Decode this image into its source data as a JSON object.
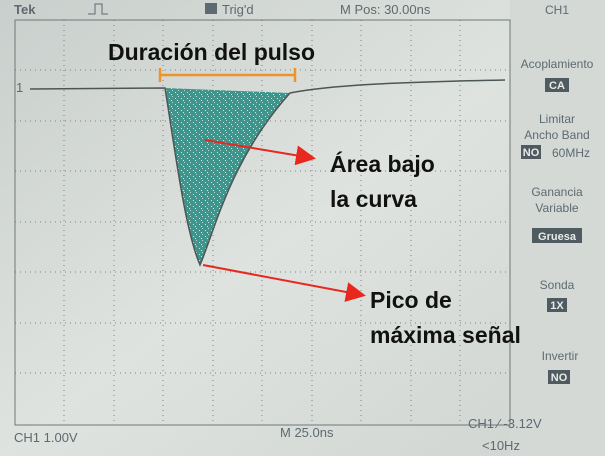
{
  "header": {
    "brand": "Tek",
    "trigger": "Trig'd",
    "position": "M Pos: 30.00ns",
    "channel": "CH1"
  },
  "menu": {
    "coupling": {
      "title": "Acoplamiento",
      "value": "CA"
    },
    "bandwidth": {
      "title_1": "Limitar",
      "title_2": "Ancho Band",
      "flag": "NO",
      "value": "60MHz"
    },
    "gain": {
      "title_1": "Ganancia",
      "title_2": "Variable",
      "value": "Gruesa"
    },
    "probe": {
      "title": "Sonda",
      "value": "1X"
    },
    "invert": {
      "title": "Invertir",
      "value": "NO"
    }
  },
  "marker": "1",
  "status": {
    "scale": "CH1  1.00V",
    "time": "M 25.0ns",
    "trigger": "CH1 ∕ -3.12V",
    "frequency": "<10Hz"
  },
  "annotations": {
    "duration": "Duración del pulso",
    "area_1": "Área bajo",
    "area_2": "la curva",
    "peak_1": "Pico de",
    "peak_2": "máxima señal"
  }
}
